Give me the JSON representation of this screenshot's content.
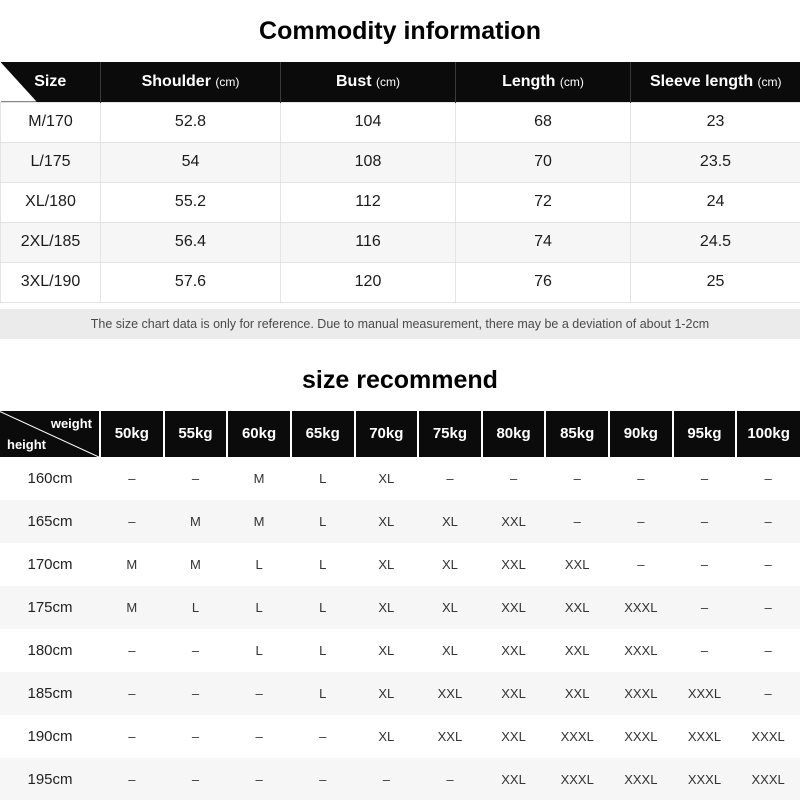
{
  "page": {
    "commodity_title": "Commodity information",
    "recommend_title": "size recommend",
    "note": "The size chart data is only for reference. Due to manual measurement, there may be a deviation of about 1-2cm"
  },
  "size_table": {
    "columns": [
      {
        "label": "Size",
        "unit": ""
      },
      {
        "label": "Shoulder",
        "unit": "(cm)"
      },
      {
        "label": "Bust",
        "unit": "(cm)"
      },
      {
        "label": "Length",
        "unit": "(cm)"
      },
      {
        "label": "Sleeve length",
        "unit": "(cm)"
      }
    ],
    "rows": [
      [
        "M/170",
        "52.8",
        "104",
        "68",
        "23"
      ],
      [
        "L/175",
        "54",
        "108",
        "70",
        "23.5"
      ],
      [
        "XL/180",
        "55.2",
        "112",
        "72",
        "24"
      ],
      [
        "2XL/185",
        "56.4",
        "116",
        "74",
        "24.5"
      ],
      [
        "3XL/190",
        "57.6",
        "120",
        "76",
        "25"
      ]
    ]
  },
  "recommend_table": {
    "corner_top": "weight",
    "corner_bottom": "height",
    "weights": [
      "50kg",
      "55kg",
      "60kg",
      "65kg",
      "70kg",
      "75kg",
      "80kg",
      "85kg",
      "90kg",
      "95kg",
      "100kg"
    ],
    "rows": [
      {
        "height": "160cm",
        "values": [
          "–",
          "–",
          "M",
          "L",
          "XL",
          "–",
          "–",
          "–",
          "–",
          "–",
          "–"
        ]
      },
      {
        "height": "165cm",
        "values": [
          "–",
          "M",
          "M",
          "L",
          "XL",
          "XL",
          "XXL",
          "–",
          "–",
          "–",
          "–"
        ]
      },
      {
        "height": "170cm",
        "values": [
          "M",
          "M",
          "L",
          "L",
          "XL",
          "XL",
          "XXL",
          "XXL",
          "–",
          "–",
          "–"
        ]
      },
      {
        "height": "175cm",
        "values": [
          "M",
          "L",
          "L",
          "L",
          "XL",
          "XL",
          "XXL",
          "XXL",
          "XXXL",
          "–",
          "–"
        ]
      },
      {
        "height": "180cm",
        "values": [
          "–",
          "–",
          "L",
          "L",
          "XL",
          "XL",
          "XXL",
          "XXL",
          "XXXL",
          "–",
          "–"
        ]
      },
      {
        "height": "185cm",
        "values": [
          "–",
          "–",
          "–",
          "L",
          "XL",
          "XXL",
          "XXL",
          "XXL",
          "XXXL",
          "XXXL",
          "–"
        ]
      },
      {
        "height": "190cm",
        "values": [
          "–",
          "–",
          "–",
          "–",
          "XL",
          "XXL",
          "XXL",
          "XXXL",
          "XXXL",
          "XXXL",
          "XXXL"
        ]
      },
      {
        "height": "195cm",
        "values": [
          "–",
          "–",
          "–",
          "–",
          "–",
          "–",
          "XXL",
          "XXXL",
          "XXXL",
          "XXXL",
          "XXXL"
        ]
      }
    ]
  }
}
